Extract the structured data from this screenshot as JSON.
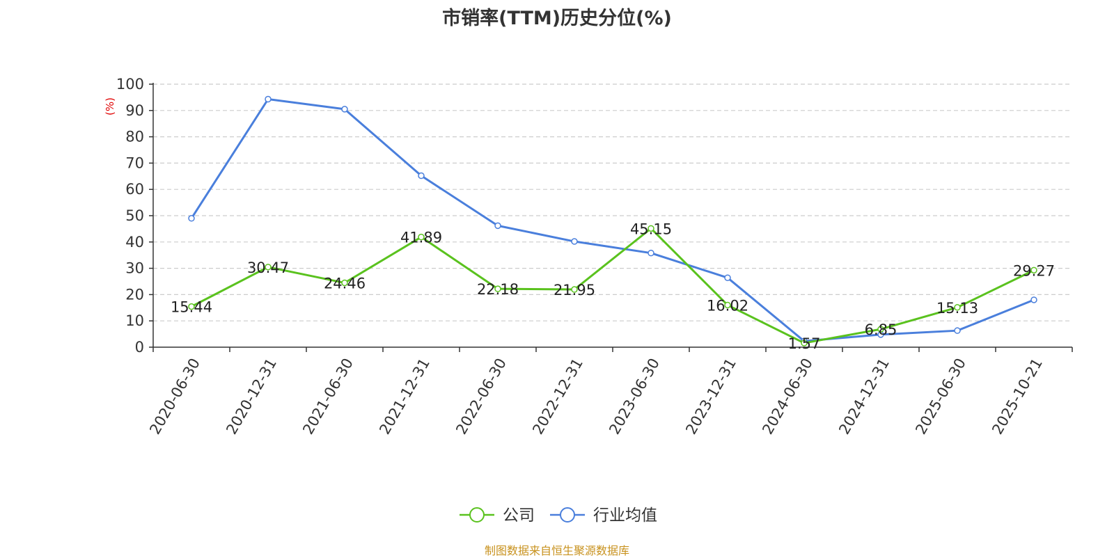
{
  "chart_data": {
    "type": "line",
    "title": "市销率(TTM)历史分位(%)",
    "ylabel": "(%)",
    "xlabel": "",
    "categories": [
      "2020-06-30",
      "2020-12-31",
      "2021-06-30",
      "2021-12-31",
      "2022-06-30",
      "2022-12-31",
      "2023-06-30",
      "2023-12-31",
      "2024-06-30",
      "2024-12-31",
      "2025-06-30",
      "2025-10-21"
    ],
    "ylim": [
      0,
      100
    ],
    "yticks": [
      0,
      10,
      20,
      30,
      40,
      50,
      60,
      70,
      80,
      90,
      100
    ],
    "grid": "horizontal dashed",
    "legend_position": "bottom-center",
    "series": [
      {
        "name": "公司",
        "color": "#5ac21e",
        "values": [
          15.44,
          30.47,
          24.46,
          41.89,
          22.18,
          21.95,
          45.15,
          16.02,
          1.57,
          6.85,
          15.13,
          29.27
        ],
        "labels": [
          "15.44",
          "30.47",
          "24.46",
          "41.89",
          "22.18",
          "21.95",
          "45.15",
          "16.02",
          "1.57",
          "6.85",
          "15.13",
          "29.27"
        ]
      },
      {
        "name": "行业均值",
        "color": "#4a7fdc",
        "values": [
          49,
          94.3,
          90.5,
          65.2,
          46.2,
          40.2,
          35.8,
          26.4,
          2.3,
          4.8,
          6.3,
          18
        ]
      }
    ]
  },
  "source_text": "制图数据来自恒生聚源数据库"
}
